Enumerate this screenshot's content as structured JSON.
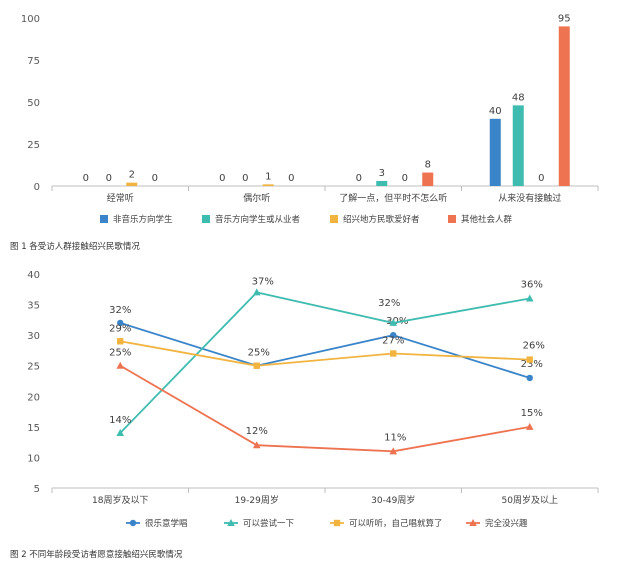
{
  "chart_data": [
    {
      "type": "bar",
      "categories": [
        "经常听",
        "偶尔听",
        "了解一点，但平时不怎么听",
        "从来没有接触过"
      ],
      "series": [
        {
          "name": "非音乐方向学生",
          "values": [
            0,
            0,
            0,
            40
          ],
          "color": "#3a84c9"
        },
        {
          "name": "音乐方向学生或从业者",
          "values": [
            0,
            0,
            3,
            48
          ],
          "color": "#3fbcb0"
        },
        {
          "name": "绍兴地方民歌爱好者",
          "values": [
            2,
            1,
            0,
            0
          ],
          "color": "#f2b441"
        },
        {
          "name": "其他社会人群",
          "values": [
            0,
            0,
            8,
            95
          ],
          "color": "#ee7350"
        }
      ],
      "ylim": [
        0,
        100
      ],
      "yticks": [
        0,
        25,
        50,
        75,
        100
      ],
      "legend": "bottom"
    },
    {
      "type": "line",
      "categories": [
        "18周岁及以下",
        "19-29周岁",
        "30-49周岁",
        "50周岁及以上"
      ],
      "series": [
        {
          "name": "很乐意学唱",
          "values": [
            32,
            25,
            30,
            23
          ],
          "labels": [
            "32%",
            "25%",
            "30%",
            "23%"
          ],
          "color": "#3a84c9",
          "marker": "circle"
        },
        {
          "name": "可以尝试一下",
          "values": [
            14,
            37,
            32,
            36
          ],
          "labels": [
            "14%",
            "37%",
            "32%",
            "36%"
          ],
          "color": "#3fbcb0",
          "marker": "triangle"
        },
        {
          "name": "可以听听，自己唱就算了",
          "values": [
            29,
            25,
            27,
            26
          ],
          "labels": [
            "29%",
            "",
            "27%",
            "26%"
          ],
          "color": "#f2b441",
          "marker": "square"
        },
        {
          "name": "完全没兴趣",
          "values": [
            25,
            12,
            11,
            15
          ],
          "labels": [
            "25%",
            "12%",
            "11%",
            "15%"
          ],
          "color": "#ee7350",
          "marker": "triangle"
        }
      ],
      "ylim": [
        5,
        40
      ],
      "yticks": [
        5,
        10,
        15,
        20,
        25,
        30,
        35,
        40
      ],
      "legend": "bottom"
    }
  ],
  "captions": {
    "fig1": "图 1  各受访人群接触绍兴民歌情况",
    "fig2": "图 2  不同年龄段受访者愿意接触绍兴民歌情况"
  }
}
